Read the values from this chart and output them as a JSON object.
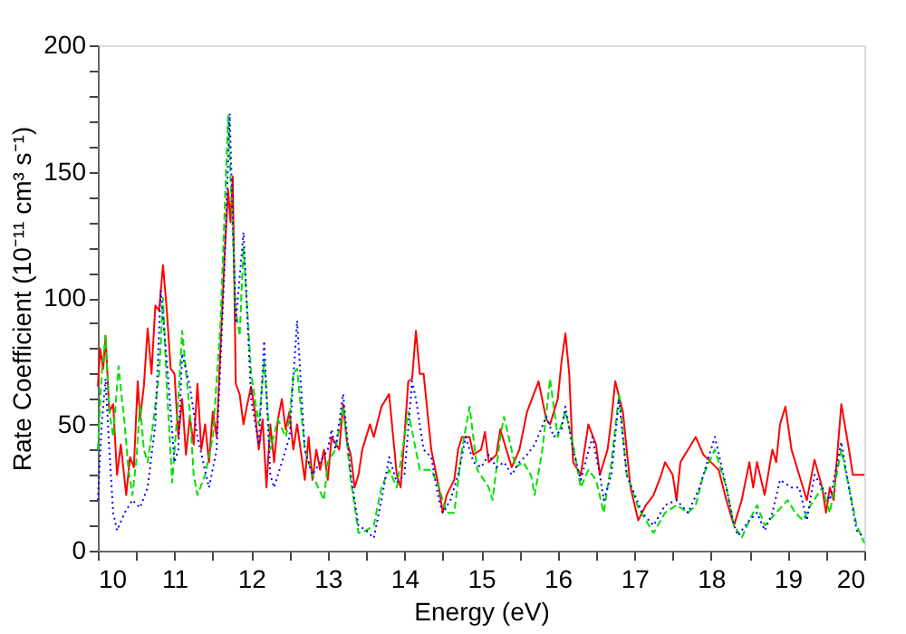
{
  "chart_data": {
    "type": "line",
    "xlabel": "Energy (eV)",
    "ylabel": "Rate Coefficient (10⁻¹¹ cm³ s⁻¹)",
    "xlim": [
      10,
      20
    ],
    "ylim": [
      0,
      200
    ],
    "xticks": [
      10,
      {
        "value": 10.5,
        "label": null
      },
      11,
      {
        "value": 11.5,
        "label": null
      },
      12,
      {
        "value": 12.5,
        "label": null
      },
      13,
      {
        "value": 13.5,
        "label": null
      },
      14,
      {
        "value": 14.5,
        "label": null
      },
      15,
      {
        "value": 15.5,
        "label": null
      },
      16,
      {
        "value": 16.5,
        "label": null
      },
      17,
      {
        "value": 17.5,
        "label": null
      },
      18,
      {
        "value": 18.5,
        "label": null
      },
      19,
      {
        "value": 19.5,
        "label": null
      },
      20
    ],
    "yticks": [
      0,
      {
        "value": 10,
        "label": null
      },
      {
        "value": 20,
        "label": null
      },
      {
        "value": 30,
        "label": null
      },
      {
        "value": 40,
        "label": null
      },
      50,
      {
        "value": 60,
        "label": null
      },
      {
        "value": 70,
        "label": null
      },
      {
        "value": 80,
        "label": null
      },
      {
        "value": 90,
        "label": null
      },
      100,
      {
        "value": 110,
        "label": null
      },
      {
        "value": 120,
        "label": null
      },
      {
        "value": 130,
        "label": null
      },
      {
        "value": 140,
        "label": null
      },
      150,
      {
        "value": 160,
        "label": null
      },
      {
        "value": 170,
        "label": null
      },
      {
        "value": 180,
        "label": null
      },
      {
        "value": 190,
        "label": null
      },
      200
    ],
    "grid": false,
    "marker": "none",
    "series": [
      {
        "color": "#ff0000",
        "line_style": "solid",
        "x": [
          10.0,
          10.03,
          10.07,
          10.1,
          10.15,
          10.2,
          10.25,
          10.3,
          10.37,
          10.42,
          10.47,
          10.52,
          10.55,
          10.6,
          10.65,
          10.7,
          10.75,
          10.8,
          10.85,
          10.9,
          10.95,
          11.0,
          11.05,
          11.1,
          11.15,
          11.2,
          11.25,
          11.3,
          11.35,
          11.4,
          11.45,
          11.5,
          11.55,
          11.6,
          11.65,
          11.7,
          11.73,
          11.76,
          11.8,
          11.85,
          11.9,
          11.95,
          12.0,
          12.05,
          12.1,
          12.15,
          12.2,
          12.25,
          12.3,
          12.35,
          12.4,
          12.45,
          12.5,
          12.55,
          12.6,
          12.7,
          12.75,
          12.8,
          12.85,
          12.9,
          12.95,
          13.0,
          13.05,
          13.15,
          13.2,
          13.25,
          13.3,
          13.35,
          13.4,
          13.45,
          13.55,
          13.6,
          13.7,
          13.8,
          13.9,
          13.95,
          14.0,
          14.05,
          14.1,
          14.15,
          14.2,
          14.25,
          14.35,
          14.45,
          14.5,
          14.55,
          14.65,
          14.7,
          14.75,
          14.85,
          14.9,
          15.0,
          15.05,
          15.1,
          15.2,
          15.25,
          15.35,
          15.4,
          15.5,
          15.6,
          15.75,
          15.85,
          15.9,
          16.0,
          16.05,
          16.1,
          16.15,
          16.2,
          16.3,
          16.4,
          16.5,
          16.55,
          16.65,
          16.7,
          16.75,
          16.85,
          16.95,
          17.05,
          17.15,
          17.25,
          17.35,
          17.4,
          17.5,
          17.55,
          17.6,
          17.7,
          17.8,
          17.9,
          18.0,
          18.1,
          18.2,
          18.3,
          18.4,
          18.5,
          18.55,
          18.6,
          18.7,
          18.8,
          18.85,
          18.9,
          18.97,
          19.05,
          19.15,
          19.25,
          19.35,
          19.45,
          19.5,
          19.55,
          19.6,
          19.7,
          19.8,
          19.85,
          20.0
        ],
        "values": [
          65,
          80,
          72,
          85,
          55,
          58,
          30,
          42,
          22,
          37,
          33,
          67,
          52,
          65,
          88,
          70,
          97,
          95,
          113,
          95,
          72,
          70,
          45,
          60,
          38,
          53,
          42,
          66,
          40,
          50,
          35,
          55,
          45,
          80,
          115,
          143,
          130,
          148,
          66,
          62,
          50,
          58,
          65,
          55,
          40,
          52,
          25,
          50,
          35,
          52,
          60,
          48,
          55,
          40,
          50,
          28,
          45,
          28,
          40,
          32,
          40,
          28,
          45,
          40,
          58,
          43,
          38,
          25,
          30,
          40,
          50,
          45,
          57,
          62,
          30,
          25,
          45,
          67,
          68,
          87,
          70,
          70,
          40,
          25,
          15,
          22,
          28,
          40,
          45,
          45,
          38,
          40,
          47,
          35,
          38,
          48,
          38,
          33,
          40,
          55,
          67,
          52,
          50,
          60,
          75,
          86,
          70,
          35,
          30,
          50,
          42,
          30,
          40,
          52,
          67,
          55,
          25,
          12,
          18,
          22,
          30,
          35,
          30,
          20,
          35,
          40,
          45,
          38,
          35,
          32,
          20,
          10,
          20,
          35,
          25,
          35,
          22,
          40,
          35,
          50,
          57,
          40,
          30,
          20,
          36,
          25,
          15,
          25,
          20,
          58,
          40,
          30,
          30
        ]
      },
      {
        "color": "#00e000",
        "line_style": "dashed",
        "x": [
          10.0,
          10.05,
          10.1,
          10.15,
          10.2,
          10.27,
          10.35,
          10.4,
          10.45,
          10.5,
          10.55,
          10.6,
          10.65,
          10.72,
          10.8,
          10.85,
          10.9,
          10.97,
          11.05,
          11.1,
          11.2,
          11.25,
          11.3,
          11.4,
          11.5,
          11.6,
          11.7,
          11.8,
          11.85,
          11.9,
          12.0,
          12.1,
          12.17,
          12.25,
          12.35,
          12.45,
          12.5,
          12.55,
          12.6,
          12.7,
          12.8,
          12.95,
          13.0,
          13.1,
          13.2,
          13.3,
          13.4,
          13.5,
          13.6,
          13.7,
          13.8,
          13.9,
          14.05,
          14.2,
          14.35,
          14.45,
          14.55,
          14.65,
          14.75,
          14.85,
          14.95,
          15.1,
          15.15,
          15.25,
          15.3,
          15.45,
          15.55,
          15.65,
          15.7,
          15.8,
          15.9,
          16.0,
          16.1,
          16.2,
          16.3,
          16.4,
          16.5,
          16.6,
          16.7,
          16.8,
          16.9,
          17.05,
          17.25,
          17.4,
          17.55,
          17.7,
          17.8,
          17.9,
          18.05,
          18.2,
          18.3,
          18.4,
          18.5,
          18.6,
          18.7,
          18.85,
          19.0,
          19.1,
          19.2,
          19.3,
          19.45,
          19.55,
          19.7,
          19.8,
          19.9,
          20.0
        ],
        "values": [
          40,
          70,
          85,
          55,
          45,
          73,
          50,
          32,
          22,
          35,
          58,
          40,
          35,
          50,
          70,
          100,
          65,
          27,
          60,
          87,
          55,
          30,
          22,
          30,
          45,
          90,
          172,
          95,
          85,
          120,
          70,
          50,
          75,
          40,
          52,
          45,
          52,
          70,
          72,
          40,
          30,
          20,
          35,
          40,
          57,
          28,
          7,
          8,
          10,
          25,
          32,
          25,
          55,
          32,
          32,
          25,
          15,
          15,
          40,
          57,
          32,
          25,
          20,
          45,
          53,
          33,
          35,
          30,
          22,
          40,
          68,
          45,
          55,
          42,
          25,
          32,
          28,
          15,
          35,
          62,
          30,
          17,
          7,
          15,
          18,
          15,
          18,
          30,
          40,
          25,
          10,
          5,
          12,
          18,
          10,
          15,
          20,
          15,
          12,
          18,
          25,
          15,
          40,
          25,
          10,
          3
        ]
      },
      {
        "color": "#0000ff",
        "line_style": "dotted",
        "x": [
          10.0,
          10.05,
          10.1,
          10.15,
          10.2,
          10.25,
          10.35,
          10.45,
          10.55,
          10.65,
          10.75,
          10.82,
          10.9,
          11.0,
          11.05,
          11.1,
          11.2,
          11.3,
          11.45,
          11.55,
          11.65,
          11.72,
          11.8,
          11.9,
          12.0,
          12.1,
          12.17,
          12.25,
          12.3,
          12.4,
          12.5,
          12.6,
          12.7,
          12.8,
          12.9,
          13.0,
          13.05,
          13.1,
          13.2,
          13.3,
          13.4,
          13.5,
          13.6,
          13.7,
          13.8,
          13.9,
          14.0,
          14.1,
          14.15,
          14.25,
          14.35,
          14.45,
          14.5,
          14.6,
          14.7,
          14.8,
          14.9,
          15.0,
          15.1,
          15.2,
          15.3,
          15.4,
          15.5,
          15.6,
          15.7,
          15.85,
          15.95,
          16.05,
          16.1,
          16.2,
          16.3,
          16.45,
          16.55,
          16.6,
          16.7,
          16.8,
          16.9,
          17.1,
          17.25,
          17.4,
          17.55,
          17.7,
          17.85,
          18.05,
          18.2,
          18.3,
          18.35,
          18.5,
          18.6,
          18.7,
          18.8,
          18.9,
          19.05,
          19.15,
          19.25,
          19.35,
          19.45,
          19.55,
          19.7,
          19.8,
          19.9,
          20.0
        ],
        "values": [
          20,
          50,
          68,
          40,
          15,
          8,
          15,
          20,
          17,
          25,
          50,
          103,
          75,
          35,
          40,
          78,
          65,
          45,
          25,
          40,
          110,
          173,
          90,
          126,
          60,
          42,
          83,
          30,
          25,
          35,
          45,
          91,
          40,
          30,
          35,
          40,
          48,
          40,
          62,
          30,
          10,
          8,
          5,
          20,
          37,
          27,
          30,
          67,
          60,
          40,
          37,
          20,
          15,
          20,
          30,
          45,
          35,
          33,
          38,
          33,
          35,
          30,
          35,
          38,
          42,
          53,
          45,
          48,
          57,
          40,
          28,
          45,
          30,
          20,
          30,
          60,
          30,
          15,
          10,
          18,
          20,
          15,
          25,
          45,
          25,
          10,
          6,
          12,
          15,
          8,
          15,
          28,
          25,
          25,
          12,
          30,
          25,
          20,
          43,
          25,
          8,
          5
        ]
      }
    ]
  }
}
